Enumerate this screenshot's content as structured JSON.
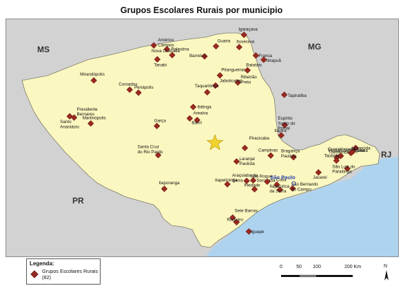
{
  "title": "Grupos Escolares Rurais por municipio",
  "regions": {
    "ms": "MS",
    "mg": "MG",
    "rj": "RJ",
    "pr": "PR"
  },
  "capital_label": "São Paulo",
  "cities": [
    {
      "name": "Igaraçava",
      "lon": -47.67,
      "lat": -20.05
    },
    {
      "name": "Américo Campos",
      "lon": -49.73,
      "lat": -20.3
    },
    {
      "name": "Guaira",
      "lon": -48.31,
      "lat": -20.32
    },
    {
      "name": "Ituverava",
      "lon": -47.78,
      "lat": -20.34
    },
    {
      "name": "Barretos",
      "lon": -48.57,
      "lat": -20.56
    },
    {
      "name": "Palestina",
      "lon": -49.43,
      "lat": -20.39
    },
    {
      "name": "Franca",
      "lon": -47.4,
      "lat": -20.54
    },
    {
      "name": "Pitangueiras",
      "lon": -48.22,
      "lat": -21.01
    },
    {
      "name": "Nova Granada",
      "lon": -49.31,
      "lat": -20.53
    },
    {
      "name": "Tanabi",
      "lon": -49.65,
      "lat": -20.63
    },
    {
      "name": "Batatais",
      "lon": -47.59,
      "lat": -20.89
    },
    {
      "name": "Itirapuã",
      "lon": -47.22,
      "lat": -20.64
    },
    {
      "name": "Ribeirão Preto",
      "lon": -47.81,
      "lat": -21.18
    },
    {
      "name": "Mirandópolis",
      "lon": -51.1,
      "lat": -21.13
    },
    {
      "name": "Jaboticabal",
      "lon": -48.32,
      "lat": -21.25
    },
    {
      "name": "Taquaritinga",
      "lon": -48.51,
      "lat": -21.41
    },
    {
      "name": "Ibitinga",
      "lon": -48.83,
      "lat": -21.76
    },
    {
      "name": "Coroados",
      "lon": -50.28,
      "lat": -21.35
    },
    {
      "name": "Tapiratiba",
      "lon": -46.75,
      "lat": -21.47
    },
    {
      "name": "Penápolis",
      "lon": -50.08,
      "lat": -21.42
    },
    {
      "name": "Presidente Bernares",
      "lon": -51.55,
      "lat": -22.01
    },
    {
      "name": "Arealva",
      "lon": -48.91,
      "lat": -22.03
    },
    {
      "name": "Bariri",
      "lon": -48.74,
      "lat": -22.07
    },
    {
      "name": "Santo Anastácio",
      "lon": -51.65,
      "lat": -21.98
    },
    {
      "name": "Martinópolis",
      "lon": -51.17,
      "lat": -22.15
    },
    {
      "name": "Garça",
      "lon": -49.66,
      "lat": -22.21
    },
    {
      "name": "Espírito Santo do Pinhal",
      "lon": -46.74,
      "lat": -22.19
    },
    {
      "name": "Santa Cruz do Rio Pardo",
      "lon": -49.63,
      "lat": -22.9
    },
    {
      "name": "Piracicaba",
      "lon": -47.65,
      "lat": -22.73
    },
    {
      "name": "Itapira",
      "lon": -46.82,
      "lat": -22.43
    },
    {
      "name": "Lorena",
      "lon": -45.12,
      "lat": -22.73
    },
    {
      "name": "Tremembé",
      "lon": -45.55,
      "lat": -22.96
    },
    {
      "name": "Aparecida",
      "lon": -45.23,
      "lat": -22.85
    },
    {
      "name": "Pindamonhangaba",
      "lon": -45.46,
      "lat": -22.92
    },
    {
      "name": "Laranjal Paulista",
      "lon": -47.84,
      "lat": -23.05
    },
    {
      "name": "Campinas",
      "lon": -47.06,
      "lat": -22.91
    },
    {
      "name": "Bragança Paulista",
      "lon": -46.54,
      "lat": -22.95
    },
    {
      "name": "Guaratinguetá",
      "lon": -45.19,
      "lat": -22.82
    },
    {
      "name": "Taubaté",
      "lon": -45.56,
      "lat": -23.03
    },
    {
      "name": "Jacareí",
      "lon": -45.97,
      "lat": -23.31
    },
    {
      "name": "São Luis do Paraitinga",
      "lon": -45.31,
      "lat": -23.22
    },
    {
      "name": "Sorocaba",
      "lon": -47.46,
      "lat": -23.5
    },
    {
      "name": "Itaporanga",
      "lon": -49.49,
      "lat": -23.7
    },
    {
      "name": "São Roque",
      "lon": -47.14,
      "lat": -23.53
    },
    {
      "name": "Araçoiaba da Serra",
      "lon": -47.61,
      "lat": -23.51
    },
    {
      "name": "Cotia",
      "lon": -46.92,
      "lat": -23.6
    },
    {
      "name": "Piedade",
      "lon": -47.43,
      "lat": -23.71
    },
    {
      "name": "Itapecirica da Serra",
      "lon": -46.85,
      "lat": -23.72
    },
    {
      "name": "São Bernardo do Campo",
      "lon": -46.56,
      "lat": -23.69
    },
    {
      "name": "Itapetininga",
      "lon": -48.05,
      "lat": -23.59
    },
    {
      "name": "Sete Barras",
      "lon": -47.93,
      "lat": -24.38
    },
    {
      "name": "Registro",
      "lon": -47.84,
      "lat": -24.49
    },
    {
      "name": "Iguape",
      "lon": -47.56,
      "lat": -24.71
    }
  ],
  "legend": {
    "title": "Legenda:",
    "label": "Grupos Escolares Rurais (82)"
  },
  "scale": {
    "unit": "Km",
    "ticks": [
      0,
      50,
      100,
      200
    ]
  },
  "north_label": "N",
  "colors": {
    "state_fill": "#fbf7c0",
    "neighbor_fill": "#d2d2d2",
    "ocean_fill": "#aed3ee",
    "marker": "#9b2a22",
    "star": "#f2d22e",
    "capital_text": "#1f3fa8"
  }
}
